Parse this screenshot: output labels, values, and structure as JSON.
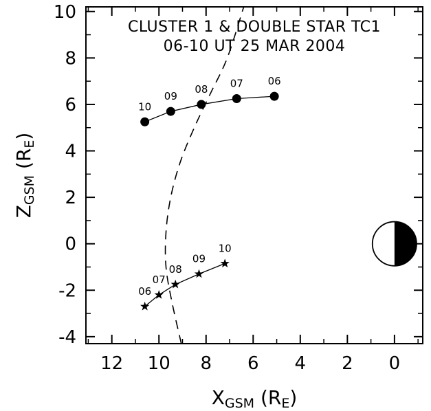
{
  "chart_data": {
    "type": "line",
    "title": "CLUSTER 1 & DOUBLE STAR TC1",
    "subtitle": "06-10 UT 25 MAR 2004",
    "xlabel": {
      "main": "X",
      "sub": "GSM",
      "unit_open": " (R",
      "unit_sub": "E",
      "unit_close": ")"
    },
    "ylabel": {
      "main": "Z",
      "sub": "GSM",
      "unit_open": " (R",
      "unit_sub": "E",
      "unit_close": ")"
    },
    "xlim": [
      13.1,
      -1.2
    ],
    "ylim": [
      -4.3,
      10.2
    ],
    "x_ticks": [
      12,
      10,
      8,
      6,
      4,
      2,
      0
    ],
    "y_ticks": [
      10,
      8,
      6,
      4,
      2,
      0,
      -2,
      -4
    ],
    "grid": false,
    "series": [
      {
        "marker": "circle",
        "x": [
          10.6,
          9.5,
          8.2,
          6.7,
          5.1
        ],
        "y": [
          5.25,
          5.7,
          6.0,
          6.25,
          6.35
        ],
        "labels": [
          "10",
          "09",
          "08",
          "07",
          "06"
        ]
      },
      {
        "marker": "star",
        "x": [
          10.6,
          10.0,
          9.3,
          8.3,
          7.2
        ],
        "y": [
          -2.7,
          -2.2,
          -1.75,
          -1.3,
          -0.85
        ],
        "labels": [
          "06",
          "07",
          "08",
          "09",
          "10"
        ]
      }
    ],
    "boundary": {
      "style": "dashed",
      "x": [
        9.05,
        9.45,
        9.7,
        9.7,
        9.5,
        9.1,
        8.5,
        7.8,
        7.1,
        6.4
      ],
      "y": [
        -4.3,
        -2.5,
        -1.0,
        0.5,
        2.0,
        3.5,
        5.0,
        6.5,
        8.0,
        10.2
      ]
    },
    "earth": {
      "x": 0,
      "y": 0,
      "radius": 0.95,
      "day_color": "#ffffff",
      "night_color": "#000000"
    }
  }
}
